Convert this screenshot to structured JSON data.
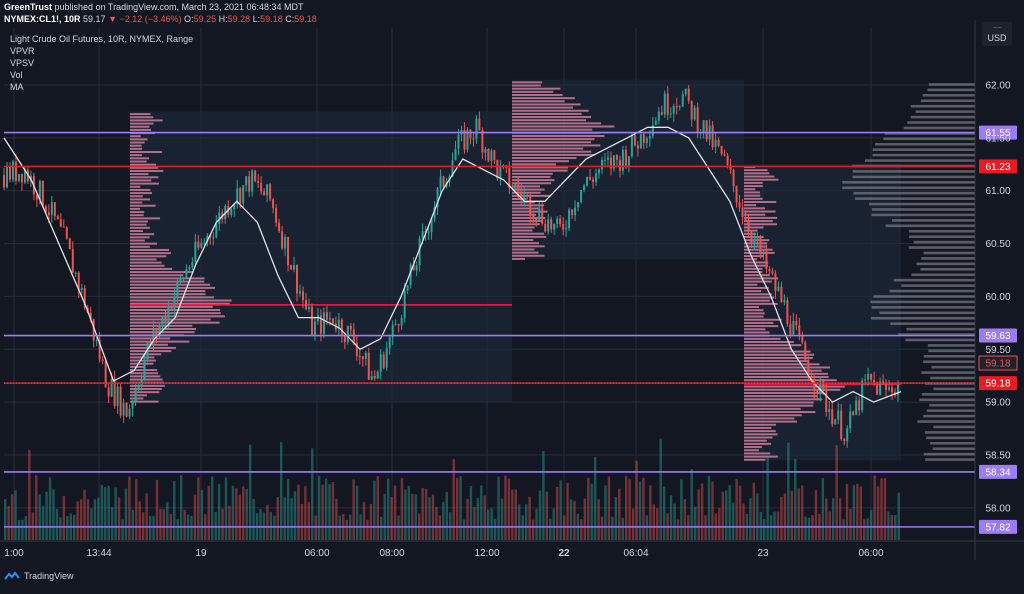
{
  "header": {
    "author": "GreenTrust",
    "published": "published on TradingView.com, March 23, 2021 06:48:34 MDT",
    "symbol": "NYMEX:CL1!, 10R",
    "last": "59.17",
    "change": "▼ −2.12 (−3.46%)",
    "o_key": "O:",
    "o_val": "59.25",
    "h_key": "H:",
    "h_val": "59.28",
    "l_key": "L:",
    "l_val": "59.18",
    "c_key": "C:",
    "c_val": "59.18"
  },
  "legend": {
    "title": "Light Crude Oil Futures, 10R, NYMEX, Range",
    "indicators": [
      "VPVR",
      "VPSV",
      "Vol",
      "MA"
    ]
  },
  "footer": {
    "brand": "TradingView"
  },
  "chart_data": {
    "type": "candlestick",
    "title": "Light Crude Oil Futures, 10R, NYMEX, Range",
    "y_unit": "USD",
    "y_range": [
      57.55,
      62.45
    ],
    "y_ticks": [
      "62.00",
      "61.50",
      "61.00",
      "60.50",
      "60.00",
      "59.50",
      "59.00",
      "58.50",
      "58.00"
    ],
    "x_ticks": [
      "1:00",
      "13:44",
      "19",
      "06:00",
      "08:00",
      "12:00",
      "22",
      "06:04",
      "23",
      "06:00"
    ],
    "x_ticks_bold": [
      "22"
    ],
    "price_path": [
      [
        0,
        61.15
      ],
      [
        3,
        61.2
      ],
      [
        6,
        60.9
      ],
      [
        9,
        60.5
      ],
      [
        12,
        59.9
      ],
      [
        15,
        59.2
      ],
      [
        18,
        58.9
      ],
      [
        21,
        59.5
      ],
      [
        24,
        59.9
      ],
      [
        27,
        60.3
      ],
      [
        30,
        60.6
      ],
      [
        33,
        60.9
      ],
      [
        36,
        61.1
      ],
      [
        39,
        60.9
      ],
      [
        42,
        60.3
      ],
      [
        45,
        59.7
      ],
      [
        48,
        59.8
      ],
      [
        51,
        59.6
      ],
      [
        54,
        59.2
      ],
      [
        57,
        59.7
      ],
      [
        60,
        60.3
      ],
      [
        63,
        60.9
      ],
      [
        66,
        61.4
      ],
      [
        69,
        61.6
      ],
      [
        72,
        61.2
      ],
      [
        75,
        61.0
      ],
      [
        78,
        60.8
      ],
      [
        81,
        60.6
      ],
      [
        84,
        61.0
      ],
      [
        87,
        61.2
      ],
      [
        90,
        61.3
      ],
      [
        93,
        61.5
      ],
      [
        96,
        61.8
      ],
      [
        99,
        61.9
      ],
      [
        102,
        61.6
      ],
      [
        105,
        61.3
      ],
      [
        108,
        60.8
      ],
      [
        111,
        60.3
      ],
      [
        114,
        59.9
      ],
      [
        117,
        59.4
      ],
      [
        120,
        59.0
      ],
      [
        123,
        58.7
      ],
      [
        126,
        59.2
      ],
      [
        129,
        59.1
      ],
      [
        131,
        59.2
      ]
    ],
    "ma_path": [
      [
        0,
        61.5
      ],
      [
        4,
        61.1
      ],
      [
        8,
        60.5
      ],
      [
        12,
        59.9
      ],
      [
        16,
        59.2
      ],
      [
        19,
        59.3
      ],
      [
        22,
        59.6
      ],
      [
        25,
        59.8
      ],
      [
        28,
        60.3
      ],
      [
        31,
        60.7
      ],
      [
        34,
        60.9
      ],
      [
        37,
        60.7
      ],
      [
        40,
        60.2
      ],
      [
        43,
        59.8
      ],
      [
        46,
        59.8
      ],
      [
        49,
        59.7
      ],
      [
        52,
        59.5
      ],
      [
        55,
        59.6
      ],
      [
        58,
        60.0
      ],
      [
        61,
        60.5
      ],
      [
        64,
        61.0
      ],
      [
        67,
        61.3
      ],
      [
        70,
        61.2
      ],
      [
        73,
        61.1
      ],
      [
        76,
        60.9
      ],
      [
        79,
        60.9
      ],
      [
        82,
        61.1
      ],
      [
        85,
        61.3
      ],
      [
        88,
        61.4
      ],
      [
        91,
        61.5
      ],
      [
        94,
        61.6
      ],
      [
        97,
        61.6
      ],
      [
        100,
        61.5
      ],
      [
        103,
        61.2
      ],
      [
        106,
        60.9
      ],
      [
        109,
        60.4
      ],
      [
        112,
        60.0
      ],
      [
        115,
        59.5
      ],
      [
        118,
        59.2
      ],
      [
        121,
        59.0
      ],
      [
        124,
        59.1
      ],
      [
        127,
        59.0
      ],
      [
        131,
        59.1
      ]
    ],
    "bar_count": 132,
    "levels": [
      {
        "price": 61.55,
        "color": "#9c7cf4",
        "label": "61.55"
      },
      {
        "price": 61.23,
        "color": "#e51c23",
        "label": "61.23"
      },
      {
        "price": 59.63,
        "color": "#9c7cf4",
        "label": "59.63"
      },
      {
        "price": 59.18,
        "color": "#e51c23",
        "label": "59.18"
      },
      {
        "price": 58.34,
        "color": "#9c7cf4",
        "label": "58.34"
      },
      {
        "price": 57.82,
        "color": "#9c7cf4",
        "label": "57.82"
      }
    ],
    "current_price_label": "59.18",
    "volume_profiles": [
      {
        "name": "VPSV",
        "from_bar": 19,
        "to_bar": 73,
        "low": 59.0,
        "high": 61.75,
        "poc": 59.92,
        "color": "#f48fb1"
      },
      {
        "name": "VPSV",
        "from_bar": 73,
        "to_bar": 108,
        "low": 60.35,
        "high": 62.05,
        "poc": 61.55,
        "color": "#f48fb1"
      },
      {
        "name": "VPSV",
        "from_bar": 108,
        "to_bar": 131,
        "low": 58.45,
        "high": 61.25,
        "poc": 59.17,
        "color": "#f48fb1"
      }
    ],
    "vpvr": {
      "name": "VPVR",
      "low": 58.45,
      "high": 62.05,
      "color": "#9598a1"
    },
    "colors": {
      "up": "#26a69a",
      "down": "#ef5350",
      "ma": "#e0e3eb",
      "background": "#131722",
      "grid": "#2a2e39"
    }
  }
}
